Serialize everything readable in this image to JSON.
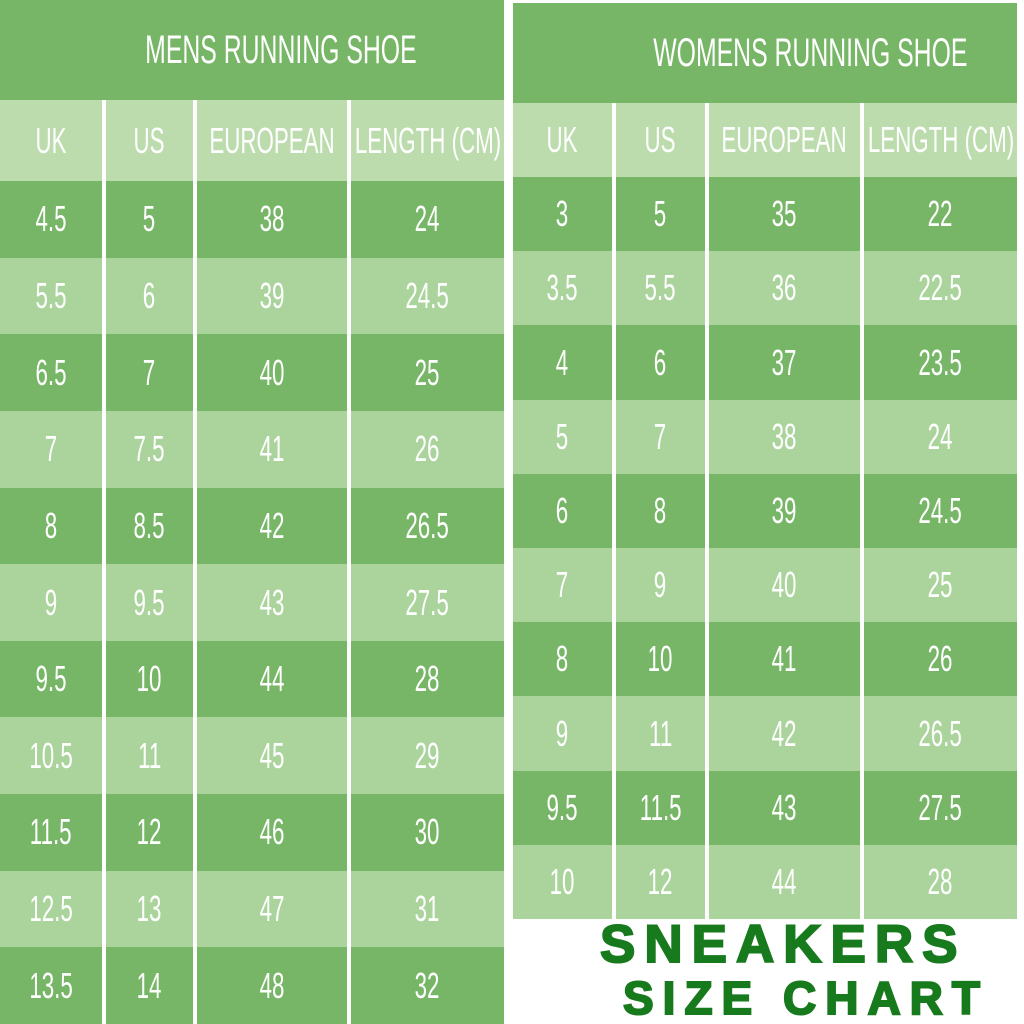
{
  "colors": {
    "row_dark_green": "#77b667",
    "row_light_green": "#abd49d",
    "header_green": "#bcdcae",
    "separator_white": "#ffffff",
    "table_text": "#ffffff",
    "footer_text_green": "#177a1d",
    "page_background": "#ffffff"
  },
  "chart_data": [
    {
      "type": "table",
      "title": "MENS RUNNING SHOE",
      "columns": [
        "UK",
        "US",
        "EUROPEAN",
        "LENGTH (CM)"
      ],
      "rows": [
        [
          "4.5",
          "5",
          "38",
          "24"
        ],
        [
          "5.5",
          "6",
          "39",
          "24.5"
        ],
        [
          "6.5",
          "7",
          "40",
          "25"
        ],
        [
          "7",
          "7.5",
          "41",
          "26"
        ],
        [
          "8",
          "8.5",
          "42",
          "26.5"
        ],
        [
          "9",
          "9.5",
          "43",
          "27.5"
        ],
        [
          "9.5",
          "10",
          "44",
          "28"
        ],
        [
          "10.5",
          "11",
          "45",
          "29"
        ],
        [
          "11.5",
          "12",
          "46",
          "30"
        ],
        [
          "12.5",
          "13",
          "47",
          "31"
        ],
        [
          "13.5",
          "14",
          "48",
          "32"
        ]
      ]
    },
    {
      "type": "table",
      "title": "WOMENS RUNNING SHOE",
      "columns": [
        "UK",
        "US",
        "EUROPEAN",
        "LENGTH (CM)"
      ],
      "rows": [
        [
          "3",
          "5",
          "35",
          "22"
        ],
        [
          "3.5",
          "5.5",
          "36",
          "22.5"
        ],
        [
          "4",
          "6",
          "37",
          "23.5"
        ],
        [
          "5",
          "7",
          "38",
          "24"
        ],
        [
          "6",
          "8",
          "39",
          "24.5"
        ],
        [
          "7",
          "9",
          "40",
          "25"
        ],
        [
          "8",
          "10",
          "41",
          "26"
        ],
        [
          "9",
          "11",
          "42",
          "26.5"
        ],
        [
          "9.5",
          "11.5",
          "43",
          "27.5"
        ],
        [
          "10",
          "12",
          "44",
          "28"
        ]
      ]
    }
  ],
  "footer": {
    "line1": "SNEAKERS",
    "line2": "SIZE CHART"
  }
}
